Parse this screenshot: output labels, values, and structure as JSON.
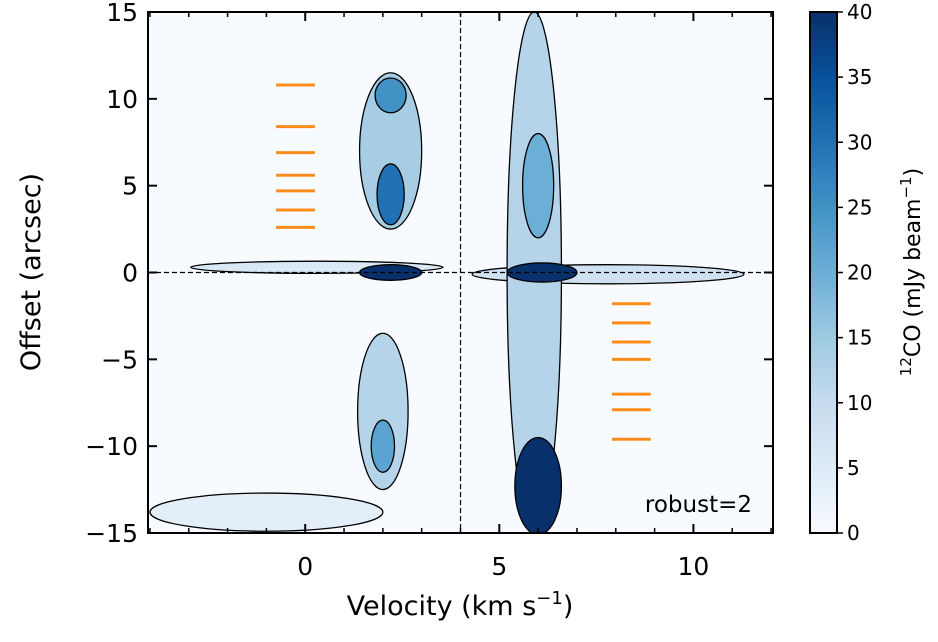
{
  "chart_data": {
    "type": "pv-diagram",
    "xlabel": "Velocity (km s",
    "xlabel_sup": "−1",
    "xlabel_end": ")",
    "ylabel": "Offset (arcsec)",
    "colorbar_label_sup": "12",
    "colorbar_label": "CO (mJy beam",
    "colorbar_label_sup2": "−1",
    "colorbar_label_end": ")",
    "annotation": "robust=2",
    "xlim": [
      -4.05,
      12.05
    ],
    "xticks": [
      0,
      5,
      10
    ],
    "xminorticks": [
      -4,
      -3,
      -2,
      -1,
      1,
      2,
      3,
      4,
      6,
      7,
      8,
      9,
      11,
      12
    ],
    "ylim": [
      -15,
      15
    ],
    "yticks": [
      {
        "value": -15,
        "label": "−15"
      },
      {
        "value": -10,
        "label": "−10"
      },
      {
        "value": -5,
        "label": "−5"
      },
      0,
      5,
      10,
      15
    ],
    "clim": [
      0,
      40
    ],
    "cticks": [
      0,
      5,
      10,
      15,
      20,
      25,
      30,
      35,
      40
    ],
    "colormap": [
      "#f7fbff",
      "#deebf7",
      "#c6dbef",
      "#9ecae1",
      "#6baed6",
      "#4292c6",
      "#2171b5",
      "#08519c",
      "#08306b"
    ],
    "reference_lines": {
      "x": 4,
      "y": 0
    },
    "emission": [
      {
        "x": -1,
        "y": -13.8,
        "width": 6,
        "height": 2.2,
        "value": 4
      },
      {
        "x": 0.3,
        "y": 0.3,
        "width": 6.5,
        "height": 0.7,
        "value": 6
      },
      {
        "x": 7.8,
        "y": -0.1,
        "width": 7,
        "height": 1.1,
        "value": 8
      },
      {
        "x": 2.2,
        "y": 7,
        "width": 1.6,
        "height": 9,
        "value": 14
      },
      {
        "x": 2.0,
        "y": -8,
        "width": 1.3,
        "height": 9,
        "value": 12
      },
      {
        "x": 5.9,
        "y": 0,
        "width": 1.4,
        "height": 30,
        "value": 12
      },
      {
        "x": 2.2,
        "y": 10.2,
        "width": 0.8,
        "height": 2,
        "value": 25
      },
      {
        "x": 2.2,
        "y": 4.5,
        "width": 0.7,
        "height": 3.5,
        "value": 30
      },
      {
        "x": 2.0,
        "y": -10,
        "width": 0.6,
        "height": 3,
        "value": 22
      },
      {
        "x": 6.0,
        "y": 5,
        "width": 0.8,
        "height": 6,
        "value": 20
      },
      {
        "x": 2.2,
        "y": 0,
        "width": 1.6,
        "height": 0.9,
        "value": 40
      },
      {
        "x": 6.1,
        "y": 0,
        "width": 1.8,
        "height": 1.1,
        "value": 40
      },
      {
        "x": 6.0,
        "y": -12.3,
        "width": 1.2,
        "height": 5.6,
        "value": 40
      }
    ],
    "markers": {
      "color": "#ff8c1a",
      "width": 1.0,
      "x": [
        -0.25,
        -0.25,
        -0.25,
        -0.25,
        -0.25,
        -0.25,
        -0.25,
        8.4,
        8.4,
        8.4,
        8.4,
        8.4,
        8.4,
        8.4
      ],
      "y": [
        10.8,
        8.4,
        6.9,
        5.6,
        4.7,
        3.6,
        2.6,
        -1.8,
        -2.9,
        -4.0,
        -5.0,
        -7.0,
        -7.9,
        -9.6
      ]
    }
  }
}
